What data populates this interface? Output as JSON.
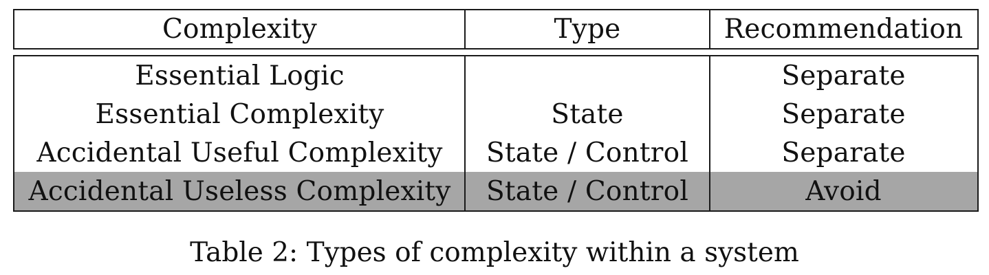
{
  "table": {
    "header": [
      "Complexity",
      "Type",
      "Recommendation"
    ],
    "rows": [
      {
        "complexity": "Essential Logic",
        "type": "",
        "recommendation": "Separate",
        "highlighted": false
      },
      {
        "complexity": "Essential Complexity",
        "type": "State",
        "recommendation": "Separate",
        "highlighted": false
      },
      {
        "complexity": "Accidental Useful Complexity",
        "type": "State / Control",
        "recommendation": "Separate",
        "highlighted": false
      },
      {
        "complexity": "Accidental Useless Complexity",
        "type": "State / Control",
        "recommendation": "Avoid",
        "highlighted": true
      }
    ],
    "highlight_color": "#a6a6a6"
  },
  "caption": "Table 2: Types of complexity within a system"
}
